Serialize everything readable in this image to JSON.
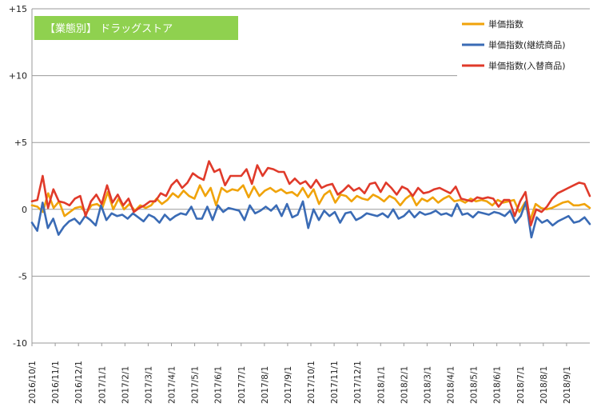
{
  "chart_data": {
    "type": "line",
    "title": "【業態別】 ドラッグストア",
    "title_bg": "#8fd14f",
    "ylim": [
      -10,
      15
    ],
    "yticks": [
      "+15",
      "+10",
      "+5",
      "0",
      "-5",
      "-10"
    ],
    "ytick_values": [
      15,
      10,
      5,
      0,
      -5,
      -10
    ],
    "xlabels": [
      "2016/10/1",
      "2016/11/1",
      "2016/12/1",
      "2017/1/1",
      "2017/2/1",
      "2017/3/1",
      "2017/4/1",
      "2017/5/1",
      "2017/6/1",
      "2017/7/1",
      "2017/8/1",
      "2017/9/1",
      "2017/10/1",
      "2017/11/1",
      "2017/12/1",
      "2018/1/1",
      "2018/2/1",
      "2018/3/1",
      "2018/4/1",
      "2018/5/1",
      "2018/6/1",
      "2018/7/1",
      "2018/8/1",
      "2018/9/1"
    ],
    "legend_position": "top-right",
    "grid": "horizontal",
    "series": [
      {
        "name": "単価指数",
        "color": "#f0a30a",
        "values": [
          0.3,
          0.2,
          -0.2,
          1.2,
          0.1,
          0.6,
          -0.5,
          -0.2,
          0.1,
          0.2,
          -0.3,
          0.3,
          0.4,
          0.1,
          1.3,
          0.0,
          0.8,
          0.0,
          0.4,
          -0.1,
          0.3,
          0.1,
          0.3,
          0.8,
          0.4,
          0.7,
          1.2,
          0.9,
          1.4,
          1.0,
          0.8,
          1.8,
          1.0,
          1.6,
          0.3,
          1.6,
          1.3,
          1.5,
          1.4,
          1.8,
          0.9,
          1.7,
          1.0,
          1.4,
          1.6,
          1.3,
          1.5,
          1.2,
          1.3,
          1.0,
          1.6,
          0.9,
          1.5,
          0.4,
          1.1,
          1.4,
          0.5,
          1.1,
          1.0,
          0.6,
          1.0,
          0.8,
          0.7,
          1.1,
          0.9,
          0.6,
          1.0,
          0.8,
          0.3,
          0.8,
          1.1,
          0.3,
          0.8,
          0.6,
          0.9,
          0.5,
          0.8,
          1.0,
          0.6,
          0.7,
          0.5,
          0.8,
          0.6,
          0.7,
          0.6,
          0.3,
          0.7,
          0.5,
          0.6,
          0.7,
          -0.2,
          0.5,
          -0.8,
          0.4,
          0.1,
          0.0,
          0.1,
          0.3,
          0.5,
          0.6,
          0.3,
          0.3,
          0.4,
          0.1
        ]
      },
      {
        "name": "単価指数(継続商品)",
        "color": "#3a6bb5",
        "values": [
          -1.0,
          -1.6,
          0.5,
          -1.4,
          -0.7,
          -1.9,
          -1.3,
          -0.9,
          -0.7,
          -1.1,
          -0.5,
          -0.8,
          -1.2,
          0.3,
          -0.8,
          -0.3,
          -0.5,
          -0.4,
          -0.7,
          -0.3,
          -0.6,
          -0.9,
          -0.4,
          -0.6,
          -1.0,
          -0.4,
          -0.8,
          -0.5,
          -0.3,
          -0.4,
          0.2,
          -0.7,
          -0.7,
          0.2,
          -0.8,
          0.3,
          -0.2,
          0.1,
          0.0,
          -0.1,
          -0.8,
          0.3,
          -0.3,
          -0.1,
          0.2,
          -0.1,
          0.3,
          -0.5,
          0.4,
          -0.6,
          -0.4,
          0.6,
          -1.4,
          0.0,
          -0.8,
          -0.1,
          -0.5,
          -0.2,
          -1.0,
          -0.3,
          -0.2,
          -0.8,
          -0.6,
          -0.3,
          -0.4,
          -0.5,
          -0.3,
          -0.6,
          0.0,
          -0.7,
          -0.5,
          -0.1,
          -0.6,
          -0.2,
          -0.4,
          -0.3,
          -0.1,
          -0.4,
          -0.3,
          -0.5,
          0.4,
          -0.4,
          -0.3,
          -0.6,
          -0.2,
          -0.3,
          -0.4,
          -0.2,
          -0.3,
          -0.5,
          -0.1,
          -1.0,
          -0.5,
          0.6,
          -2.1,
          -0.6,
          -1.0,
          -0.8,
          -1.2,
          -0.9,
          -0.7,
          -0.5,
          -1.0,
          -0.9,
          -0.6,
          -1.1
        ]
      },
      {
        "name": "単価指数(入替商品)",
        "color": "#e03a2a",
        "values": [
          0.6,
          0.7,
          2.5,
          0.1,
          1.5,
          0.6,
          0.5,
          0.3,
          0.8,
          1.0,
          -0.5,
          0.6,
          1.1,
          0.4,
          1.8,
          0.5,
          1.1,
          0.3,
          0.8,
          -0.2,
          0.1,
          0.3,
          0.6,
          0.6,
          1.2,
          1.0,
          1.8,
          2.2,
          1.6,
          2.0,
          2.7,
          2.4,
          2.2,
          3.6,
          2.8,
          3.0,
          1.8,
          2.5,
          2.5,
          2.5,
          3.0,
          1.9,
          3.3,
          2.5,
          3.1,
          3.0,
          2.8,
          2.8,
          1.9,
          2.3,
          1.9,
          2.1,
          1.6,
          2.2,
          1.6,
          1.8,
          1.9,
          1.1,
          1.4,
          1.8,
          1.4,
          1.6,
          1.2,
          1.9,
          2.0,
          1.3,
          2.0,
          1.6,
          1.1,
          1.7,
          1.5,
          1.0,
          1.6,
          1.2,
          1.3,
          1.5,
          1.6,
          1.4,
          1.2,
          1.7,
          0.8,
          0.7,
          0.6,
          0.9,
          0.8,
          0.9,
          0.8,
          0.2,
          0.7,
          0.7,
          -0.5,
          0.6,
          1.3,
          -1.2,
          0.0,
          -0.2,
          0.2,
          0.8,
          1.2,
          1.4,
          1.6,
          1.8,
          2.0,
          1.9,
          1.0
        ]
      }
    ]
  }
}
